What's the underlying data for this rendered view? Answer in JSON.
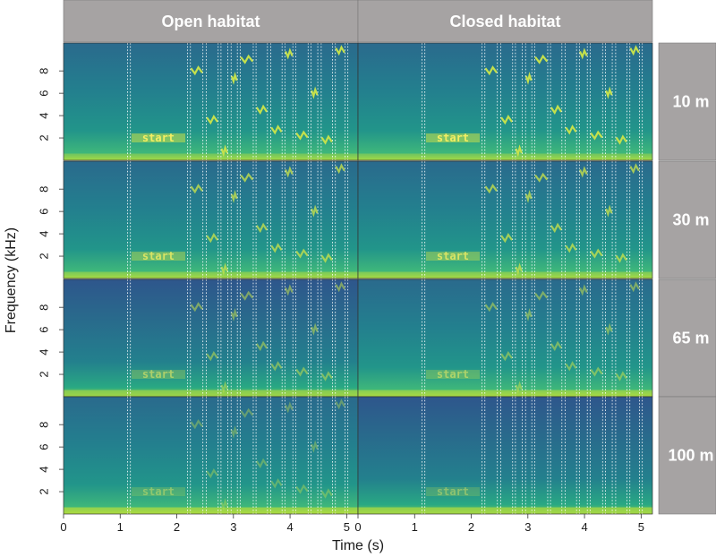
{
  "chart_data": {
    "type": "heatmap",
    "description_kind": "faceted spectrogram grid",
    "xlabel": "Time (s)",
    "ylabel": "Frequency (kHz)",
    "x_ticks": [
      0,
      1,
      2,
      3,
      4,
      5
    ],
    "y_ticks": [
      2,
      4,
      6,
      8
    ],
    "xlim": [
      0,
      5.2
    ],
    "ylim": [
      0,
      10.5
    ],
    "columns": [
      "Open habitat",
      "Closed habitat"
    ],
    "rows": [
      "10 m",
      "30 m",
      "65 m",
      "100 m"
    ],
    "colormap": [
      "#2f4b8a",
      "#2a788e",
      "#22a884",
      "#7ad151",
      "#fde725"
    ],
    "strip_color": "#a6a3a3",
    "selection_boundaries_s": [
      1.13,
      1.18,
      2.19,
      2.24,
      2.46,
      2.52,
      2.73,
      2.78,
      2.9,
      2.96,
      3.07,
      3.12,
      3.35,
      3.4,
      3.6,
      3.66,
      3.86,
      3.91,
      4.05,
      4.1,
      4.32,
      4.37,
      4.49,
      4.55,
      4.75,
      4.8,
      4.97,
      5.02
    ],
    "signals": [
      {
        "label_text": "start",
        "t_start": 1.2,
        "t_end": 2.15,
        "freq_khz": 2.0
      },
      {
        "t_start": 2.25,
        "t_end": 2.45,
        "freq_khz": 8.0
      },
      {
        "t_start": 2.53,
        "t_end": 2.72,
        "freq_khz": 3.6
      },
      {
        "t_start": 2.79,
        "t_end": 2.89,
        "freq_khz": 0.8
      },
      {
        "t_start": 2.97,
        "t_end": 3.06,
        "freq_khz": 7.3
      },
      {
        "t_start": 3.13,
        "t_end": 3.34,
        "freq_khz": 9.0
      },
      {
        "t_start": 3.41,
        "t_end": 3.59,
        "freq_khz": 4.5
      },
      {
        "t_start": 3.67,
        "t_end": 3.85,
        "freq_khz": 2.7
      },
      {
        "t_start": 3.92,
        "t_end": 4.04,
        "freq_khz": 9.5
      },
      {
        "t_start": 4.11,
        "t_end": 4.31,
        "freq_khz": 2.2
      },
      {
        "t_start": 4.38,
        "t_end": 4.48,
        "freq_khz": 6.0
      },
      {
        "t_start": 4.56,
        "t_end": 4.74,
        "freq_khz": 1.8
      },
      {
        "t_start": 4.81,
        "t_end": 4.96,
        "freq_khz": 9.8
      }
    ],
    "grid": false,
    "legend": "none"
  }
}
